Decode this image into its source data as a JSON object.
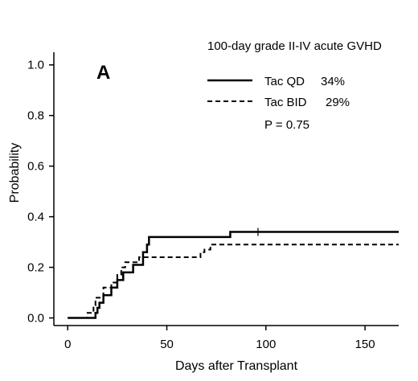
{
  "chart_data": {
    "type": "line",
    "step": true,
    "panel_label": "A",
    "title": "100-day grade II-IV acute GVHD",
    "xlabel": "Days after Transplant",
    "ylabel": "Probability",
    "xlim": [
      -7,
      167
    ],
    "ylim": [
      -0.03,
      1.05
    ],
    "x_ticks": [
      0,
      50,
      100,
      150
    ],
    "y_ticks": [
      "0.0",
      "0.2",
      "0.4",
      "0.6",
      "0.8",
      "1.0"
    ],
    "grid": false,
    "legend_position": "top-right",
    "p_value_text": "P = 0.75",
    "series": [
      {
        "name": "Tac QD",
        "legend_value": "34%",
        "style": "solid",
        "color": "#000000",
        "x": [
          0,
          9,
          14,
          15,
          16,
          18,
          22,
          25,
          28,
          33,
          38,
          40,
          41,
          82,
          167
        ],
        "y": [
          0.0,
          0.0,
          0.02,
          0.04,
          0.06,
          0.09,
          0.12,
          0.15,
          0.18,
          0.21,
          0.26,
          0.29,
          0.32,
          0.34,
          0.34
        ],
        "censor_marks": [
          {
            "x": 96,
            "y": 0.34
          }
        ]
      },
      {
        "name": "Tac BID",
        "legend_value": "29%",
        "style": "dashed",
        "color": "#000000",
        "x": [
          0,
          9,
          10,
          13,
          14,
          18,
          22,
          25,
          27,
          29,
          36,
          42,
          67,
          69,
          72,
          167
        ],
        "y": [
          0.0,
          0.0,
          0.02,
          0.05,
          0.08,
          0.12,
          0.14,
          0.17,
          0.2,
          0.22,
          0.24,
          0.24,
          0.26,
          0.27,
          0.29,
          0.29
        ],
        "censor_marks": []
      }
    ]
  }
}
